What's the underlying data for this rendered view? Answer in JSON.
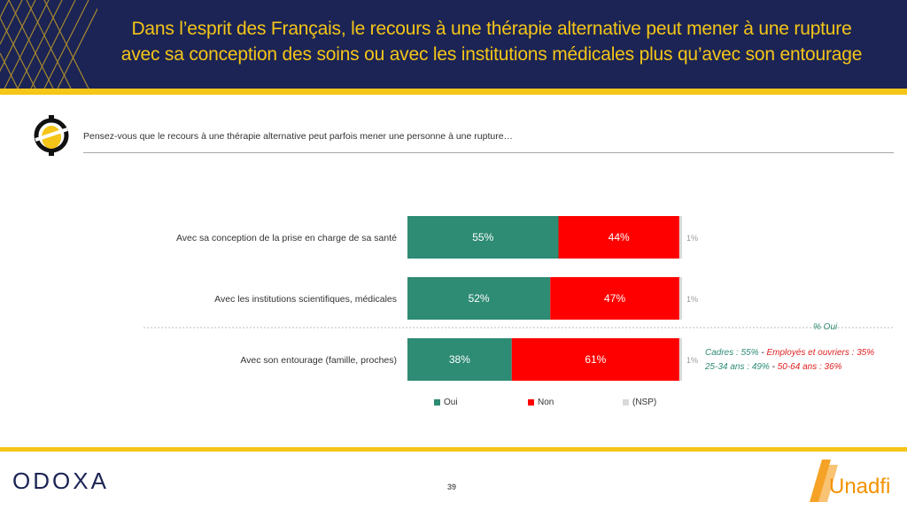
{
  "header": {
    "title_line1": "Dans l’esprit des Français, le recours à une thérapie alternative peut mener à une rupture",
    "title_line2": "avec sa conception des soins ou avec les institutions médicales plus qu’avec son entourage"
  },
  "question": "Pensez-vous que le recours à une thérapie alternative peut parfois mener une personne à une rupture…",
  "chart_data": {
    "type": "bar",
    "orientation": "horizontal",
    "stacked": true,
    "title": "",
    "xlabel": "",
    "ylabel": "",
    "xlim": [
      0,
      100
    ],
    "categories": [
      "Avec sa conception de la prise en charge de sa santé",
      "Avec les institutions scientifiques, médicales",
      "Avec son entourage (famille, proches)"
    ],
    "series": [
      {
        "name": "Oui",
        "values": [
          55,
          52,
          38
        ],
        "labels": [
          "55%",
          "52%",
          "38%"
        ],
        "color": "#2e8b74"
      },
      {
        "name": "Non",
        "values": [
          44,
          47,
          61
        ],
        "labels": [
          "44%",
          "47%",
          "61%"
        ],
        "color": "#ff0000"
      },
      {
        "name": "(NSP)",
        "values": [
          1,
          1,
          1
        ],
        "labels": [
          "1%",
          "1%",
          "1%"
        ],
        "color": "#d9d9d9"
      }
    ],
    "legend_position": "bottom",
    "grid": false,
    "annotation": {
      "label": "% Oui",
      "line1_part1": "Cadres : 55%",
      "line1_sep": " - ",
      "line1_part2": "Employés et ouvriers : 35%",
      "line2_part1": "25-34 ans : 49%",
      "line2_sep": " - ",
      "line2_part2": "50-64 ans : 36%"
    }
  },
  "footer": {
    "brand": "ODOXA",
    "page_number": "39",
    "partner": "Unadfi"
  },
  "colors": {
    "navy": "#1b2454",
    "yellow": "#f5c518",
    "green": "#2e8b74",
    "red": "#ff0000",
    "grey": "#d9d9d9",
    "unadfi_orange": "#f39200"
  }
}
